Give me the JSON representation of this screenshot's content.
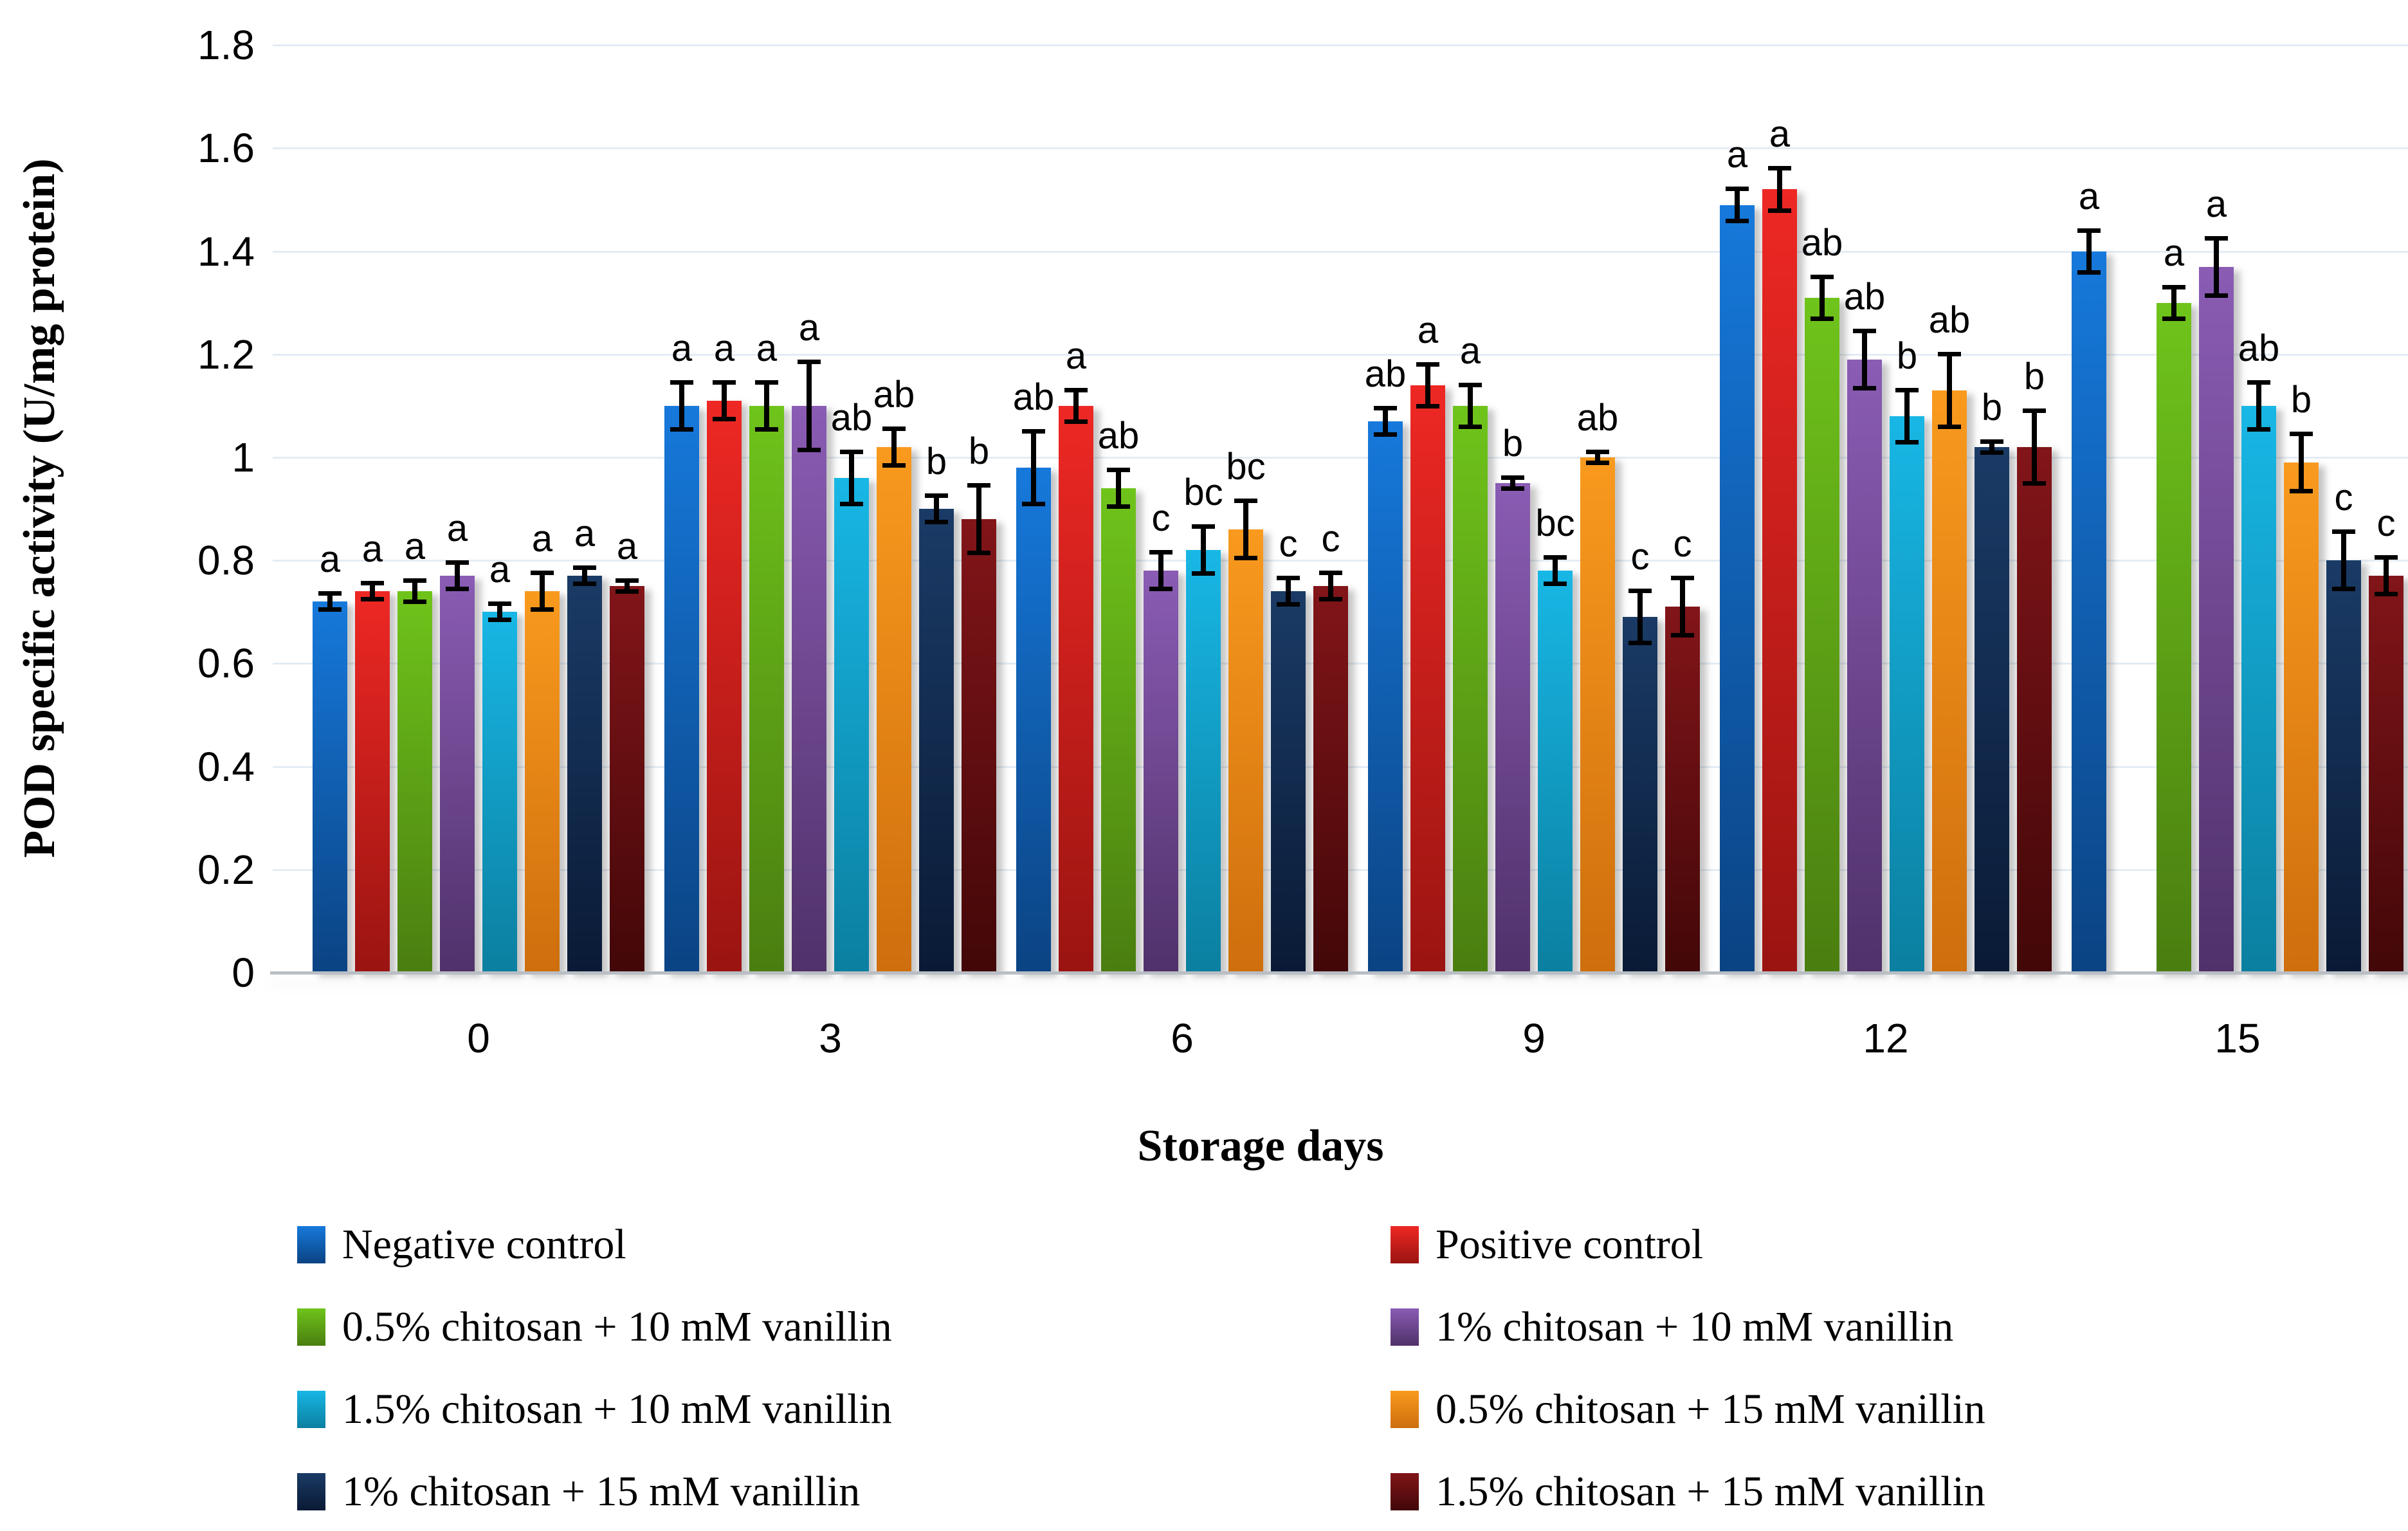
{
  "figure": {
    "ylabel": "POD specific activity (U/mg protein)",
    "xlabel": "Storage days"
  },
  "chart_data": {
    "type": "bar",
    "title": "",
    "xlabel": "Storage days",
    "ylabel": "POD specific activity (U/mg protein)",
    "ylim": [
      0,
      1.8
    ],
    "ytick_interval": 0.2,
    "yticks": [
      {
        "value": 0.0,
        "label": "0"
      },
      {
        "value": 0.2,
        "label": "0.2"
      },
      {
        "value": 0.4,
        "label": "0.4"
      },
      {
        "value": 0.6,
        "label": "0.6"
      },
      {
        "value": 0.8,
        "label": "0.8"
      },
      {
        "value": 1.0,
        "label": "1"
      },
      {
        "value": 1.2,
        "label": "1.2"
      },
      {
        "value": 1.4,
        "label": "1.4"
      },
      {
        "value": 1.6,
        "label": "1.6"
      },
      {
        "value": 1.8,
        "label": "1.8"
      }
    ],
    "categories": [
      "0",
      "3",
      "6",
      "9",
      "12",
      "15"
    ],
    "grid": "horizontal",
    "legend_position": "bottom-two-columns",
    "error_bars": true,
    "significance_letters": true,
    "series": [
      {
        "name": "Negative control",
        "color_top": "#1679db",
        "color_bottom": "#0b4383",
        "values": [
          0.72,
          1.1,
          0.98,
          1.07,
          1.49,
          1.4
        ],
        "errors": [
          0.02,
          0.05,
          0.075,
          0.03,
          0.035,
          0.045
        ],
        "letters": [
          "a",
          "a",
          "ab",
          "ab",
          "a",
          "a"
        ]
      },
      {
        "name": "Positive control",
        "color_top": "#ee2824",
        "color_bottom": "#9a1411",
        "values": [
          0.74,
          1.11,
          1.1,
          1.14,
          1.52,
          null
        ],
        "errors": [
          0.02,
          0.04,
          0.035,
          0.045,
          0.045,
          null
        ],
        "letters": [
          "a",
          "a",
          "a",
          "a",
          "a",
          null
        ]
      },
      {
        "name": "0.5% chitosan + 10 mM vanillin",
        "color_top": "#6fc41b",
        "color_bottom": "#4a7e10",
        "values": [
          0.74,
          1.1,
          0.94,
          1.1,
          1.31,
          1.3
        ],
        "errors": [
          0.025,
          0.05,
          0.04,
          0.045,
          0.045,
          0.035
        ],
        "letters": [
          "a",
          "a",
          "ab",
          "a",
          "ab",
          "a"
        ]
      },
      {
        "name": "1% chitosan + 10 mM vanillin",
        "color_top": "#8a5cb4",
        "color_bottom": "#50316a",
        "values": [
          0.77,
          1.1,
          0.78,
          0.95,
          1.19,
          1.37
        ],
        "errors": [
          0.03,
          0.09,
          0.04,
          0.015,
          0.06,
          0.06
        ],
        "letters": [
          "a",
          "a",
          "c",
          "b",
          "ab",
          "a"
        ]
      },
      {
        "name": "1.5% chitosan + 10 mM vanillin",
        "color_top": "#18b7e5",
        "color_bottom": "#0b7fa0",
        "values": [
          0.7,
          0.96,
          0.82,
          0.78,
          1.08,
          1.1
        ],
        "errors": [
          0.02,
          0.055,
          0.05,
          0.03,
          0.055,
          0.05
        ],
        "letters": [
          "a",
          "ab",
          "bc",
          "bc",
          "b",
          "ab"
        ]
      },
      {
        "name": "0.5% chitosan + 15 mM vanillin",
        "color_top": "#f99a1e",
        "color_bottom": "#ce6e0d",
        "values": [
          0.74,
          1.02,
          0.86,
          1.0,
          1.13,
          0.99
        ],
        "errors": [
          0.04,
          0.04,
          0.06,
          0.015,
          0.075,
          0.06
        ],
        "letters": [
          "a",
          "ab",
          "bc",
          "ab",
          "ab",
          "b"
        ]
      },
      {
        "name": "1% chitosan + 15 mM vanillin",
        "color_top": "#1a3b66",
        "color_bottom": "#0a1a35",
        "values": [
          0.77,
          0.9,
          0.74,
          0.69,
          1.02,
          0.8
        ],
        "errors": [
          0.02,
          0.03,
          0.03,
          0.055,
          0.015,
          0.06
        ],
        "letters": [
          "a",
          "b",
          "c",
          "c",
          "b",
          "c"
        ]
      },
      {
        "name": "1.5% chitosan + 15 mM vanillin",
        "color_top": "#821519",
        "color_bottom": "#420708",
        "values": [
          0.75,
          0.88,
          0.75,
          0.71,
          1.02,
          0.77
        ],
        "errors": [
          0.015,
          0.07,
          0.03,
          0.06,
          0.075,
          0.04
        ],
        "letters": [
          "a",
          "b",
          "c",
          "c",
          "b",
          "c"
        ]
      }
    ],
    "legend_columns": [
      [
        0,
        2,
        4,
        6
      ],
      [
        1,
        3,
        5,
        7
      ]
    ]
  }
}
